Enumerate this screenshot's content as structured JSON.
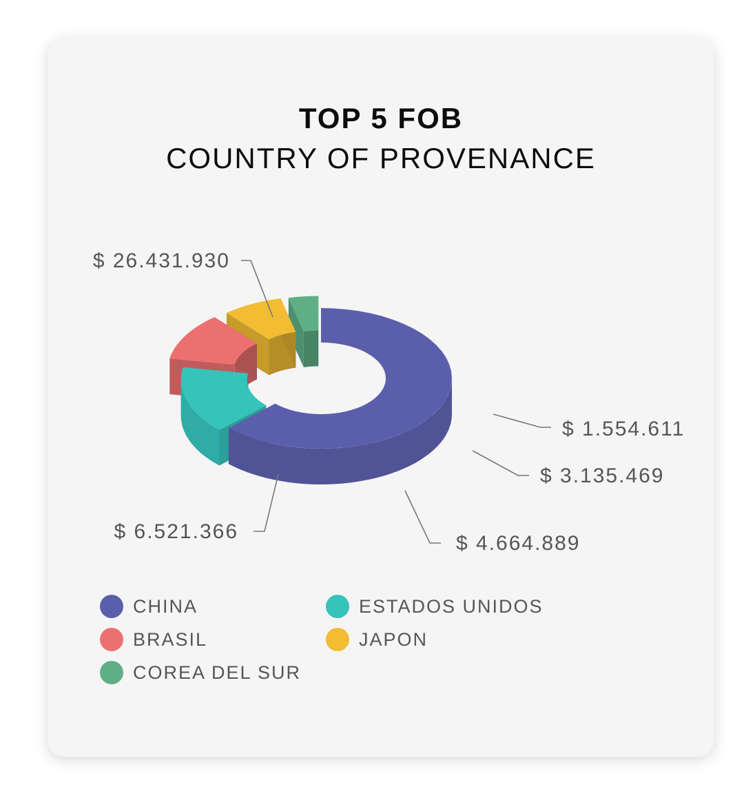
{
  "chart_data": {
    "type": "pie",
    "style": "3d-donut-exploded",
    "title": "TOP 5 FOB",
    "subtitle": "COUNTRY OF PROVENANCE",
    "categories": [
      "CHINA",
      "ESTADOS UNIDOS",
      "BRASIL",
      "JAPON",
      "COREA DEL SUR"
    ],
    "values": [
      26431930,
      6521366,
      4664889,
      3135469,
      1554611
    ],
    "value_labels": [
      "$ 26.431.930",
      "$ 6.521.366",
      "$ 4.664.889",
      "$ 3.135.469",
      "$ 1.554.611"
    ],
    "colors": [
      "#5b5fab",
      "#35c3bb",
      "#ec7070",
      "#f2bd33",
      "#5fae86"
    ],
    "legend": {
      "position": "bottom",
      "items": [
        {
          "label": "CHINA",
          "color": "#5b5fab"
        },
        {
          "label": "ESTADOS UNIDOS",
          "color": "#35c3bb"
        },
        {
          "label": "BRASIL",
          "color": "#ec7070"
        },
        {
          "label": "JAPON",
          "color": "#f2bd33"
        },
        {
          "label": "COREA DEL SUR",
          "color": "#5fae86"
        }
      ]
    }
  }
}
